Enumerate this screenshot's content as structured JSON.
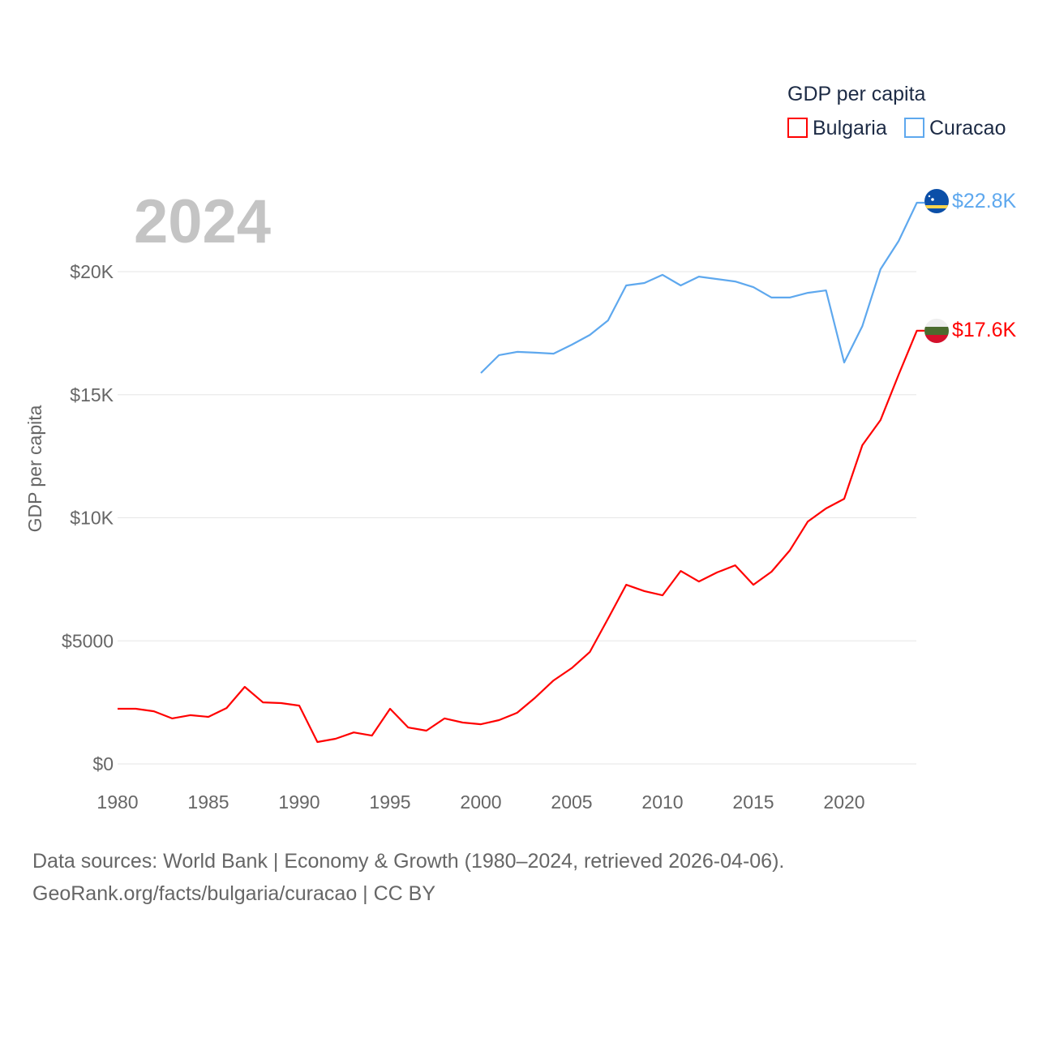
{
  "chart_data": {
    "type": "line",
    "title": "2024",
    "ylabel": "GDP per capita",
    "xlabel": "",
    "xlim": [
      1980,
      2024
    ],
    "ylim": [
      0,
      23000
    ],
    "grid": true,
    "x_ticks": [
      "1980",
      "1985",
      "1990",
      "1995",
      "2000",
      "2005",
      "2010",
      "2015",
      "2020"
    ],
    "x_tick_values": [
      1980,
      1985,
      1990,
      1995,
      2000,
      2005,
      2010,
      2015,
      2020
    ],
    "y_ticks": [
      "$0",
      "$5000",
      "$10K",
      "$15K",
      "$20K"
    ],
    "y_tick_values": [
      0,
      5000,
      10000,
      15000,
      20000
    ],
    "legend": {
      "title": "GDP per capita",
      "placement": "top-right",
      "entries": [
        "Bulgaria",
        "Curacao"
      ]
    },
    "series": [
      {
        "name": "Bulgaria",
        "color": "#ff0000",
        "end_label": "$17.6K",
        "flag": "bulgaria-flag",
        "x": [
          1980,
          1981,
          1982,
          1983,
          1984,
          1985,
          1986,
          1987,
          1988,
          1989,
          1990,
          1991,
          1992,
          1993,
          1994,
          1995,
          1996,
          1997,
          1998,
          1999,
          2000,
          2001,
          2002,
          2003,
          2004,
          2005,
          2006,
          2007,
          2008,
          2009,
          2010,
          2011,
          2012,
          2013,
          2014,
          2015,
          2016,
          2017,
          2018,
          2019,
          2020,
          2021,
          2022,
          2023,
          2024
        ],
        "values": [
          2240,
          2240,
          2140,
          1850,
          1980,
          1910,
          2270,
          3130,
          2500,
          2470,
          2370,
          890,
          1020,
          1280,
          1150,
          2240,
          1480,
          1350,
          1850,
          1680,
          1610,
          1780,
          2080,
          2700,
          3390,
          3890,
          4550,
          5900,
          7280,
          7020,
          6850,
          7840,
          7410,
          7780,
          8070,
          7280,
          7810,
          8670,
          9850,
          10380,
          10770,
          12950,
          13970,
          15820,
          17600
        ]
      },
      {
        "name": "Curacao",
        "color": "#5ea8ee",
        "end_label": "$22.8K",
        "flag": "curacao-flag",
        "x": [
          2000,
          2001,
          2002,
          2003,
          2004,
          2005,
          2006,
          2007,
          2008,
          2009,
          2010,
          2011,
          2012,
          2013,
          2014,
          2015,
          2016,
          2017,
          2018,
          2019,
          2020,
          2021,
          2022,
          2023,
          2024
        ],
        "values": [
          15880,
          16610,
          16740,
          16710,
          16670,
          17030,
          17430,
          18020,
          19440,
          19540,
          19870,
          19440,
          19800,
          19700,
          19600,
          19370,
          18950,
          18950,
          19140,
          19240,
          16310,
          17790,
          20100,
          21250,
          22800
        ]
      }
    ]
  },
  "footer": {
    "line1": "Data sources: World Bank | Economy & Growth (1980–2024, retrieved 2026-04-06).",
    "line2": "GeoRank.org/facts/bulgaria/curacao | CC BY"
  }
}
